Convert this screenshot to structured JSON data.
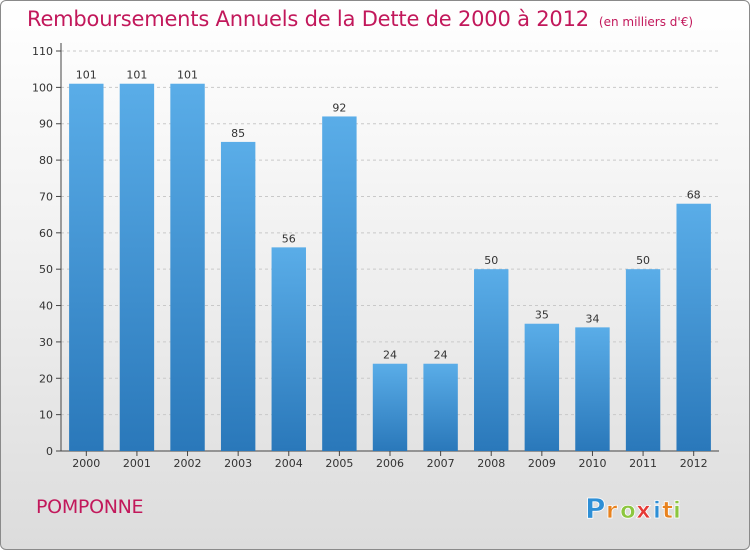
{
  "chart_data": {
    "type": "bar",
    "title": "Remboursements Annuels de la Dette de 2000 à 2012",
    "subtitle": "(en milliers d'€)",
    "categories": [
      "2000",
      "2001",
      "2002",
      "2003",
      "2004",
      "2005",
      "2006",
      "2007",
      "2008",
      "2009",
      "2010",
      "2011",
      "2012"
    ],
    "values": [
      101,
      101,
      101,
      85,
      56,
      92,
      24,
      24,
      50,
      35,
      34,
      50,
      68
    ],
    "ylim": [
      0,
      110
    ],
    "yticks": [
      0,
      10,
      20,
      30,
      40,
      50,
      60,
      70,
      80,
      90,
      100,
      110
    ],
    "grid": true,
    "bar_color_top": "#5aade8",
    "bar_color_bottom": "#2a78ba"
  },
  "footer": {
    "commune": "POMPONNE"
  },
  "logo": {
    "text": "Proxiti",
    "letters": [
      "P",
      "r",
      "o",
      "x",
      "i",
      "t",
      "i"
    ],
    "colors": [
      "#2e8fd6",
      "#e8821e",
      "#8cc63f",
      "#e53935",
      "#2e8fd6",
      "#e8821e",
      "#8cc63f"
    ]
  }
}
